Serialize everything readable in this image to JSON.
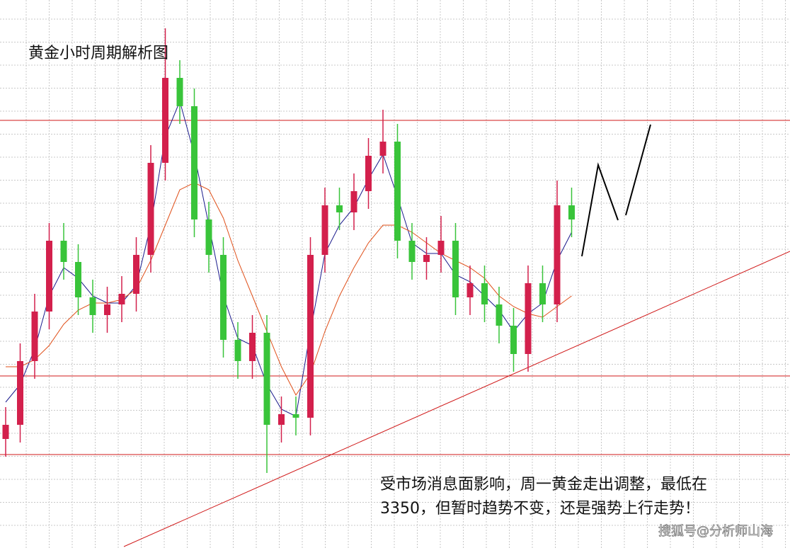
{
  "chart_data": {
    "type": "candlestick",
    "title": "黄金小时周期解析图",
    "annotation": [
      "受市场消息面影响，周一黄金走出调整，最低在",
      "3350，但暂时趋势不变，还是强势上行走势！"
    ],
    "watermark": "搜狐号@分析师山海",
    "ylim": [
      3328.8,
      3483.6
    ],
    "up_color": "#d3204c",
    "down_color": "#39c43a",
    "open": [
      3359.6,
      3363.6,
      3381.6,
      3395.6,
      3415.6,
      3409.6,
      3399.6,
      3394.6,
      3397.6,
      3400.6,
      3411.6,
      3437.6,
      3461.6,
      3453.6,
      3421.6,
      3411.6,
      3387.6,
      3381.6,
      3389.6,
      3363.6,
      3366.6,
      3365.6,
      3411.6,
      3425.6,
      3423.6,
      3429.6,
      3439.6,
      3443.6,
      3415.6,
      3409.6,
      3411.6,
      3415.6,
      3399.6,
      3403.6,
      3397.6,
      3391.6,
      3383.6,
      3403.6,
      3397.6,
      3425.6
    ],
    "high": [
      3368.6,
      3386.6,
      3400.6,
      3420.6,
      3420.6,
      3414.6,
      3404.6,
      3402.6,
      3405.6,
      3416.6,
      3442.6,
      3475.6,
      3466.6,
      3458.6,
      3426.6,
      3416.6,
      3392.6,
      3394.6,
      3394.6,
      3371.6,
      3371.6,
      3416.6,
      3430.6,
      3430.6,
      3434.6,
      3444.6,
      3452.6,
      3448.6,
      3420.6,
      3416.6,
      3422.6,
      3420.6,
      3408.6,
      3408.6,
      3402.6,
      3396.6,
      3408.6,
      3408.6,
      3432.6,
      3430.6
    ],
    "low": [
      3354.6,
      3358.6,
      3376.6,
      3390.6,
      3404.6,
      3394.6,
      3389.6,
      3389.6,
      3392.6,
      3395.6,
      3406.6,
      3432.6,
      3448.6,
      3416.6,
      3406.6,
      3382.6,
      3376.6,
      3376.6,
      3350,
      3358.6,
      3360.6,
      3360.6,
      3406.6,
      3418.6,
      3418.6,
      3424.6,
      3434.6,
      3410.6,
      3404.6,
      3404.6,
      3406.6,
      3394.6,
      3394.6,
      3392.6,
      3386.6,
      3378.6,
      3378.6,
      3392.6,
      3392.6,
      3416.6
    ],
    "close": [
      3363.6,
      3381.6,
      3395.6,
      3415.6,
      3409.6,
      3399.6,
      3394.6,
      3397.6,
      3400.6,
      3411.6,
      3437.6,
      3461.6,
      3453.6,
      3421.6,
      3411.6,
      3387.6,
      3381.6,
      3389.6,
      3363.6,
      3366.6,
      3365.6,
      3411.6,
      3425.6,
      3423.6,
      3429.6,
      3439.6,
      3443.6,
      3415.6,
      3409.6,
      3411.6,
      3415.6,
      3399.6,
      3403.6,
      3397.6,
      3391.6,
      3383.6,
      3403.6,
      3397.6,
      3425.6,
      3421.6
    ],
    "moving_averages": [
      {
        "color": "#1a1a8c",
        "values": [
          3370,
          3375,
          3385,
          3400,
          3408,
          3405,
          3400,
          3398,
          3398,
          3403,
          3420,
          3445,
          3455,
          3440,
          3420,
          3400,
          3388,
          3386,
          3375,
          3368,
          3366,
          3390,
          3412,
          3420,
          3425,
          3433,
          3440,
          3428,
          3415,
          3412,
          3412,
          3406,
          3404,
          3400,
          3396,
          3390,
          3395,
          3398,
          3410,
          3418
        ]
      },
      {
        "color": "#e0501a",
        "values": [
          3380,
          3380,
          3382,
          3386,
          3392,
          3396,
          3398,
          3398,
          3399,
          3402,
          3410,
          3420,
          3430,
          3432,
          3430,
          3422,
          3410,
          3400,
          3390,
          3380,
          3372,
          3378,
          3390,
          3400,
          3408,
          3415,
          3420,
          3420,
          3418,
          3415,
          3412,
          3410,
          3408,
          3405,
          3400,
          3397,
          3395,
          3394,
          3397,
          3400
        ]
      }
    ]
  }
}
